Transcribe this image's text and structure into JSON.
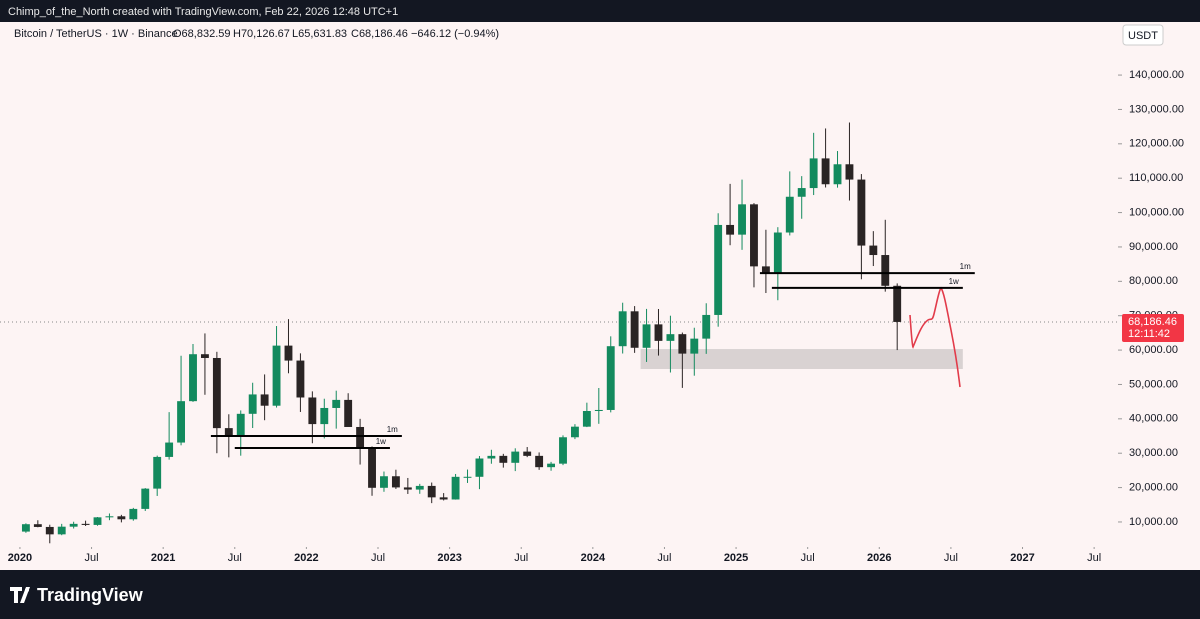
{
  "chart_data": {
    "type": "candlestick",
    "attribution": "Chimp_of_the_North created with TradingView.com, Feb 22, 2026 12:48 UTC+1",
    "title": "Bitcoin / TetherUS · 1W · Binance",
    "ohlc": [
      "O68,832.59",
      "H70,126.67",
      "L65,631.83",
      "C68,186.46",
      "−646.12 (−0.94%)"
    ],
    "currency": "USDT",
    "brand": "TradingView",
    "up_color": "#138a5e",
    "down_color": "#2a2424",
    "x": [
      "2020-01",
      "2020-02",
      "2020-03",
      "2020-04",
      "2020-05",
      "2020-06",
      "2020-07",
      "2020-08",
      "2020-09",
      "2020-10",
      "2020-11",
      "2020-12",
      "2021-01",
      "2021-02",
      "2021-03",
      "2021-04",
      "2021-05",
      "2021-06",
      "2021-07",
      "2021-08",
      "2021-09",
      "2021-10",
      "2021-11",
      "2021-12",
      "2022-01",
      "2022-02",
      "2022-03",
      "2022-04",
      "2022-05",
      "2022-06",
      "2022-07",
      "2022-08",
      "2022-09",
      "2022-10",
      "2022-11",
      "2022-12",
      "2023-01",
      "2023-02",
      "2023-03",
      "2023-04",
      "2023-05",
      "2023-06",
      "2023-07",
      "2023-08",
      "2023-09",
      "2023-10",
      "2023-11",
      "2023-12",
      "2024-01",
      "2024-02",
      "2024-03",
      "2024-04",
      "2024-05",
      "2024-06",
      "2024-07",
      "2024-08",
      "2024-09",
      "2024-10",
      "2024-11",
      "2024-12",
      "2025-01",
      "2025-02",
      "2025-03",
      "2025-04",
      "2025-05",
      "2025-06",
      "2025-07",
      "2025-08",
      "2025-09",
      "2025-10",
      "2025-11",
      "2025-12",
      "2026-01",
      "2026-02"
    ],
    "open": [
      7200,
      9350,
      8550,
      6400,
      8630,
      9450,
      9140,
      11350,
      11650,
      10780,
      13800,
      19700,
      28920,
      33100,
      45140,
      58800,
      57700,
      37300,
      35040,
      41460,
      47100,
      43820,
      61300,
      56950,
      46210,
      38470,
      43160,
      45510,
      37630,
      31800,
      19940,
      23300,
      20050,
      19420,
      20490,
      17160,
      16540,
      23130,
      23140,
      28460,
      29230,
      27210,
      30470,
      29230,
      25940,
      26960,
      34640,
      37720,
      42280,
      42580,
      61130,
      71280,
      60670,
      67480,
      62680,
      64630,
      58970,
      63330,
      70220,
      96400,
      93580,
      102400,
      84350,
      82550,
      94200,
      104600,
      107130,
      115760,
      108240,
      114050,
      109600,
      90400,
      87650,
      78700
    ],
    "high": [
      9600,
      10500,
      9200,
      9450,
      10070,
      10380,
      11440,
      12470,
      12070,
      14100,
      19860,
      29300,
      41950,
      58350,
      61780,
      64850,
      59500,
      41330,
      42450,
      50500,
      52920,
      67000,
      69000,
      59050,
      47990,
      45850,
      48190,
      47450,
      40000,
      31980,
      24670,
      25200,
      22800,
      21080,
      21470,
      18400,
      23960,
      25250,
      29180,
      31000,
      29820,
      31430,
      31800,
      30230,
      27480,
      35200,
      38450,
      44700,
      48970,
      64000,
      73780,
      72800,
      71980,
      71950,
      70000,
      65100,
      66500,
      73620,
      99800,
      108350,
      109590,
      102750,
      95000,
      95750,
      111980,
      110600,
      123200,
      124470,
      117900,
      126200,
      111200,
      94600,
      97900,
      79400
    ],
    "low": [
      6850,
      8450,
      3800,
      6150,
      8100,
      8830,
      8900,
      10520,
      9880,
      10370,
      13200,
      17570,
      28130,
      32300,
      44950,
      47000,
      30000,
      28800,
      29280,
      37330,
      39600,
      43280,
      53250,
      42000,
      32900,
      34300,
      37150,
      37700,
      26700,
      17620,
      18780,
      19600,
      18150,
      18190,
      15480,
      16260,
      16500,
      21350,
      19550,
      26940,
      25810,
      24800,
      28860,
      25160,
      24900,
      26540,
      34100,
      37600,
      38550,
      41880,
      59000,
      59190,
      56550,
      58400,
      53480,
      49000,
      52550,
      58900,
      66800,
      90500,
      89160,
      78250,
      76600,
      74500,
      93350,
      98200,
      105100,
      107300,
      107250,
      103500,
      80600,
      84450,
      77000,
      60000
    ],
    "close": [
      9350,
      8550,
      6400,
      8630,
      9450,
      9140,
      11350,
      11650,
      10780,
      13800,
      19700,
      28920,
      33100,
      45140,
      58800,
      57700,
      37300,
      35040,
      41460,
      47100,
      43820,
      61300,
      56950,
      46210,
      38470,
      43160,
      45510,
      37630,
      31800,
      19940,
      23300,
      20050,
      19420,
      20490,
      17160,
      16540,
      23130,
      23140,
      28460,
      29230,
      27210,
      30470,
      29230,
      25940,
      26960,
      34640,
      37720,
      42280,
      42580,
      61130,
      71280,
      60670,
      67480,
      62680,
      64630,
      58970,
      63330,
      70220,
      96400,
      93580,
      102400,
      84350,
      82550,
      94200,
      104600,
      107130,
      115760,
      108240,
      114050,
      109600,
      90400,
      87650,
      78700,
      68186.46
    ],
    "xlim": [
      "2019-12",
      "2027-09"
    ],
    "xticks": [
      {
        "value": "2020-01",
        "label": "2020"
      },
      {
        "value": "2020-07",
        "label": "Jul"
      },
      {
        "value": "2021-01",
        "label": "2021"
      },
      {
        "value": "2021-07",
        "label": "Jul"
      },
      {
        "value": "2022-01",
        "label": "2022"
      },
      {
        "value": "2022-07",
        "label": "Jul"
      },
      {
        "value": "2023-01",
        "label": "2023"
      },
      {
        "value": "2023-07",
        "label": "Jul"
      },
      {
        "value": "2024-01",
        "label": "2024"
      },
      {
        "value": "2024-07",
        "label": "Jul"
      },
      {
        "value": "2025-01",
        "label": "2025"
      },
      {
        "value": "2025-07",
        "label": "Jul"
      },
      {
        "value": "2026-01",
        "label": "2026"
      },
      {
        "value": "2026-07",
        "label": "Jul"
      },
      {
        "value": "2027-01",
        "label": "2027"
      },
      {
        "value": "2027-07",
        "label": "Jul"
      }
    ],
    "ylim": [
      3300,
      156600
    ],
    "yticks": [
      {
        "value": 10000,
        "label": "10,000.00"
      },
      {
        "value": 20000,
        "label": "20,000.00"
      },
      {
        "value": 30000,
        "label": "30,000.00"
      },
      {
        "value": 40000,
        "label": "40,000.00"
      },
      {
        "value": 50000,
        "label": "50,000.00"
      },
      {
        "value": 60000,
        "label": "60,000.00"
      },
      {
        "value": 70000,
        "label": "70,000.00"
      },
      {
        "value": 80000,
        "label": "80,000.00"
      },
      {
        "value": 90000,
        "label": "90,000.00"
      },
      {
        "value": 100000,
        "label": "100,000.00"
      },
      {
        "value": 110000,
        "label": "110,000.00"
      },
      {
        "value": 120000,
        "label": "120,000.00"
      },
      {
        "value": 130000,
        "label": "130,000.00"
      },
      {
        "value": 140000,
        "label": "140,000.00"
      }
    ],
    "levels": [
      {
        "label": "1m",
        "value": 35000,
        "from": "2021-05",
        "to": "2022-09"
      },
      {
        "label": "1w",
        "value": 31500,
        "from": "2021-07",
        "to": "2022-08"
      },
      {
        "label": "1m",
        "value": 82400,
        "from": "2025-03",
        "to": "2026-09"
      },
      {
        "label": "1w",
        "value": 78100,
        "from": "2025-04",
        "to": "2026-08"
      }
    ],
    "zone": {
      "from": "2024-05",
      "to": "2026-08",
      "low": 54500,
      "high": 60300
    },
    "last_price": {
      "value": 68186.46,
      "label": "68,186.46"
    },
    "countdown": "12:11:42"
  }
}
